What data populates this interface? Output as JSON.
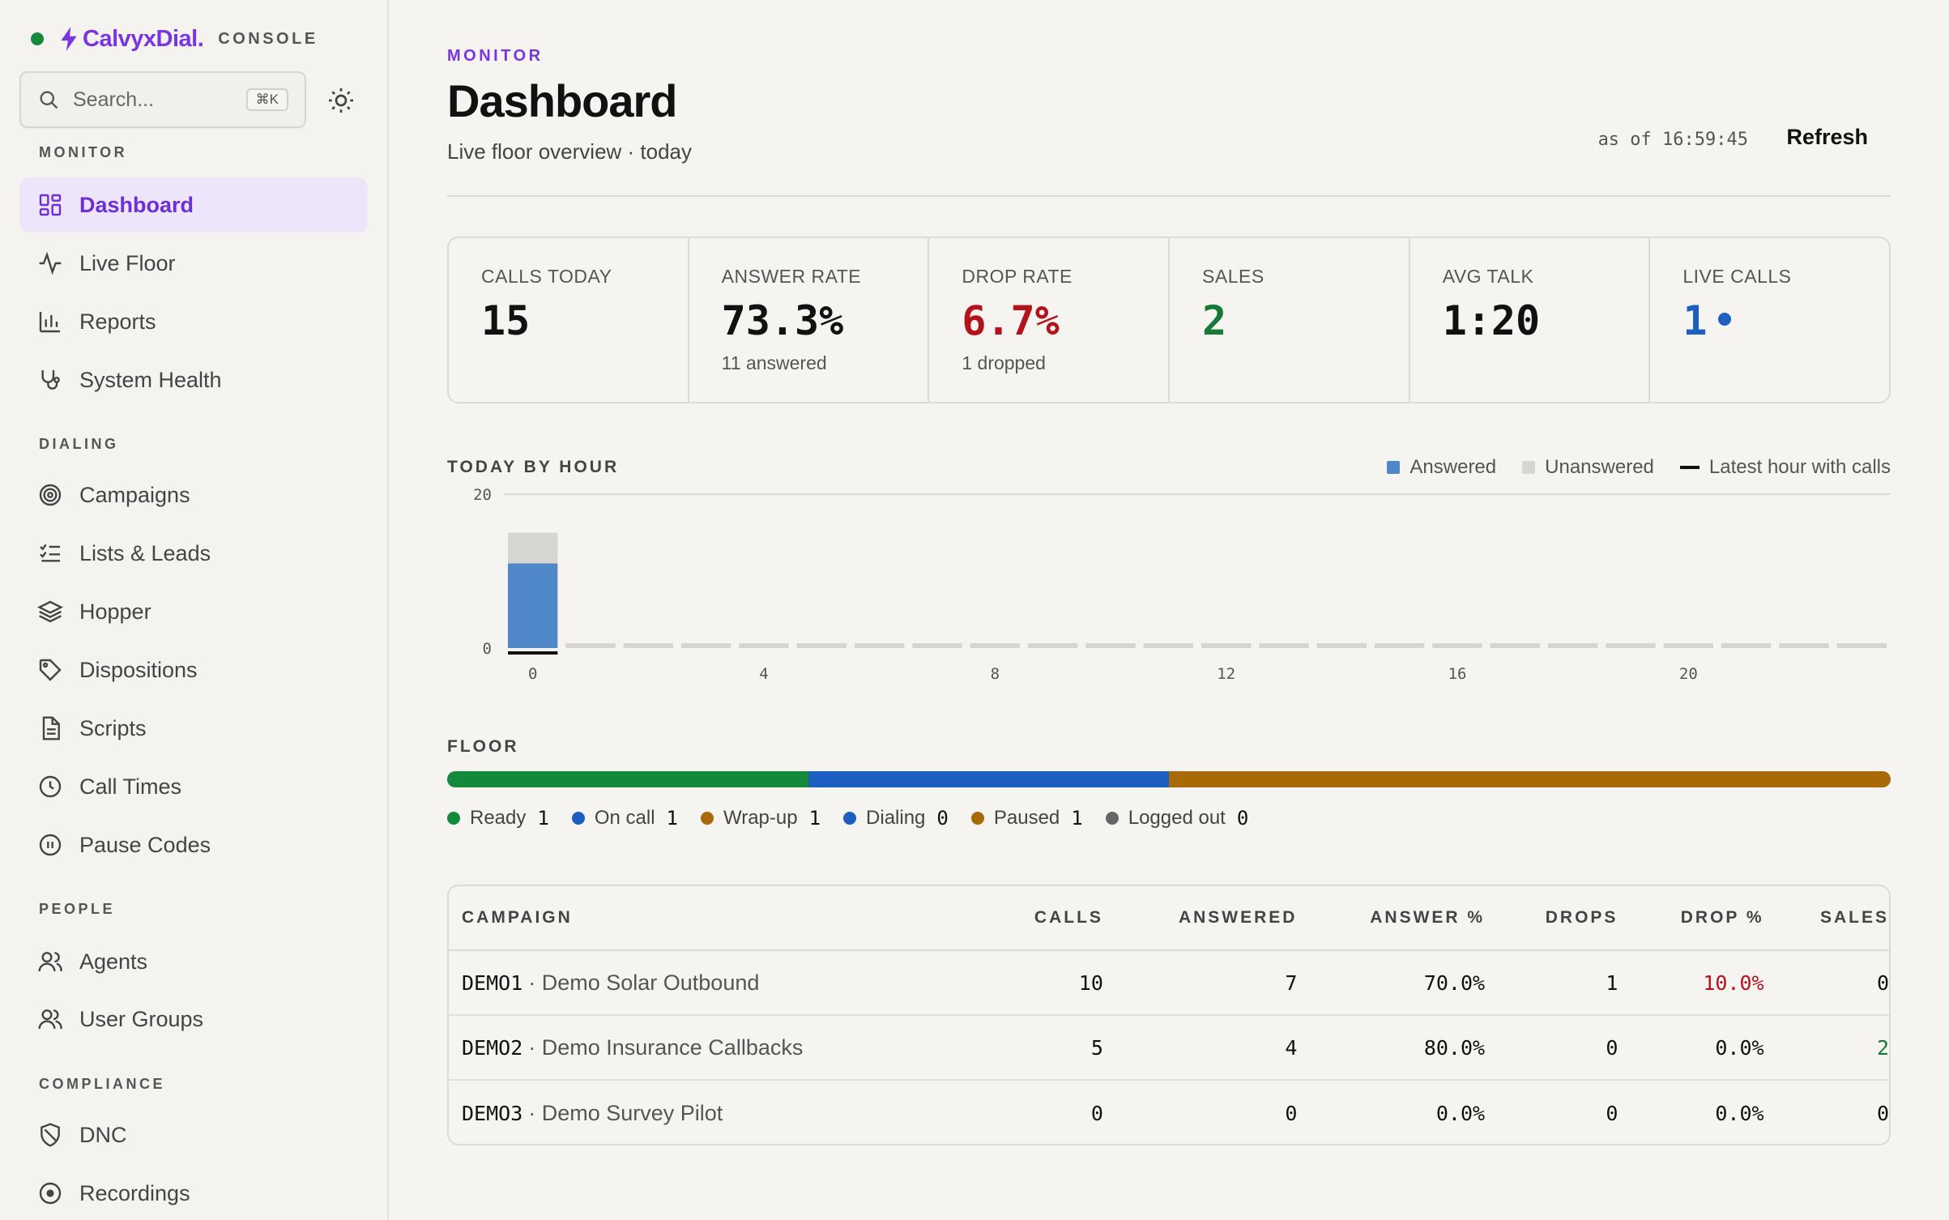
{
  "brand": {
    "name": "CalvyxDial.",
    "suffix": "CONSOLE",
    "status_color": "#15893b",
    "accent": "#7a35e0"
  },
  "search": {
    "placeholder": "Search...",
    "shortcut": "⌘K"
  },
  "sidebar": {
    "sections": [
      {
        "label": "MONITOR",
        "items": [
          {
            "label": "Dashboard",
            "icon": "grid-icon",
            "active": true
          },
          {
            "label": "Live Floor",
            "icon": "activity-icon"
          },
          {
            "label": "Reports",
            "icon": "bar-chart-icon"
          },
          {
            "label": "System Health",
            "icon": "stethoscope-icon"
          }
        ]
      },
      {
        "label": "DIALING",
        "items": [
          {
            "label": "Campaigns",
            "icon": "target-icon"
          },
          {
            "label": "Lists & Leads",
            "icon": "checklist-icon"
          },
          {
            "label": "Hopper",
            "icon": "layers-icon"
          },
          {
            "label": "Dispositions",
            "icon": "tag-icon"
          },
          {
            "label": "Scripts",
            "icon": "file-text-icon"
          },
          {
            "label": "Call Times",
            "icon": "clock-icon"
          },
          {
            "label": "Pause Codes",
            "icon": "pause-circle-icon"
          }
        ]
      },
      {
        "label": "PEOPLE",
        "items": [
          {
            "label": "Agents",
            "icon": "users-icon"
          },
          {
            "label": "User Groups",
            "icon": "user-group-icon"
          }
        ]
      },
      {
        "label": "COMPLIANCE",
        "items": [
          {
            "label": "DNC",
            "icon": "shield-off-icon"
          },
          {
            "label": "Recordings",
            "icon": "record-icon"
          }
        ]
      }
    ]
  },
  "header": {
    "eyebrow": "MONITOR",
    "title": "Dashboard",
    "subtitle": "Live floor overview · today",
    "as_of": "as of 16:59:45",
    "refresh_label": "Refresh"
  },
  "stats": [
    {
      "label": "CALLS TODAY",
      "value": "15",
      "sub": ""
    },
    {
      "label": "ANSWER RATE",
      "value": "73.3%",
      "sub": "11 answered"
    },
    {
      "label": "DROP RATE",
      "value": "6.7%",
      "sub": "1 dropped",
      "tone": "red"
    },
    {
      "label": "SALES",
      "value": "2",
      "sub": "",
      "tone": "green"
    },
    {
      "label": "AVG TALK",
      "value": "1:20",
      "sub": ""
    },
    {
      "label": "LIVE CALLS",
      "value": "1",
      "sub": "",
      "tone": "blue"
    }
  ],
  "chart_section_label": "TODAY BY HOUR",
  "chart_data": {
    "type": "bar",
    "title": "TODAY BY HOUR",
    "x": [
      0,
      1,
      2,
      3,
      4,
      5,
      6,
      7,
      8,
      9,
      10,
      11,
      12,
      13,
      14,
      15,
      16,
      17,
      18,
      19,
      20,
      21,
      22,
      23
    ],
    "xticks": [
      0,
      4,
      8,
      12,
      16,
      20
    ],
    "ylim": [
      0,
      20
    ],
    "yticks": [
      0,
      20
    ],
    "series": [
      {
        "name": "Answered",
        "color": "#4f87c9",
        "values": [
          11,
          0,
          0,
          0,
          0,
          0,
          0,
          0,
          0,
          0,
          0,
          0,
          0,
          0,
          0,
          0,
          0,
          0,
          0,
          0,
          0,
          0,
          0,
          0
        ]
      },
      {
        "name": "Unanswered",
        "color": "#d6d5d2",
        "values": [
          4,
          0,
          0,
          0,
          0,
          0,
          0,
          0,
          0,
          0,
          0,
          0,
          0,
          0,
          0,
          0,
          0,
          0,
          0,
          0,
          0,
          0,
          0,
          0
        ]
      }
    ],
    "latest_hour_marker": {
      "name": "Latest hour with calls",
      "hour": 0,
      "color": "#111111"
    },
    "stacked": true,
    "legend_position": "top-right",
    "grid": false
  },
  "floor": {
    "label": "FLOOR",
    "segments": [
      {
        "name": "Ready",
        "count": 1,
        "color": "#15893b"
      },
      {
        "name": "On call",
        "count": 1,
        "color": "#1d5fc0"
      },
      {
        "name": "Wrap-up",
        "count": 1,
        "color": "#a86a07"
      },
      {
        "name": "Dialing",
        "count": 0,
        "color": "#1d5fc0"
      },
      {
        "name": "Paused",
        "count": 1,
        "color": "#a86a07"
      },
      {
        "name": "Logged out",
        "count": 0,
        "color": "#666666"
      }
    ]
  },
  "table": {
    "headers": [
      "CAMPAIGN",
      "CALLS",
      "ANSWERED",
      "ANSWER %",
      "DROPS",
      "DROP %",
      "SALES"
    ],
    "rows": [
      {
        "code": "DEMO1",
        "name": "· Demo Solar Outbound",
        "calls": "10",
        "answered": "7",
        "answer_pct": "70.0%",
        "drops": "1",
        "drop_pct": "10.0%",
        "sales": "0",
        "drop_alert": true,
        "sales_positive": false
      },
      {
        "code": "DEMO2",
        "name": "· Demo Insurance Callbacks",
        "calls": "5",
        "answered": "4",
        "answer_pct": "80.0%",
        "drops": "0",
        "drop_pct": "0.0%",
        "sales": "2",
        "drop_alert": false,
        "sales_positive": true
      },
      {
        "code": "DEMO3",
        "name": "· Demo Survey Pilot",
        "calls": "0",
        "answered": "0",
        "answer_pct": "0.0%",
        "drops": "0",
        "drop_pct": "0.0%",
        "sales": "0",
        "drop_alert": false,
        "sales_positive": false
      }
    ]
  }
}
